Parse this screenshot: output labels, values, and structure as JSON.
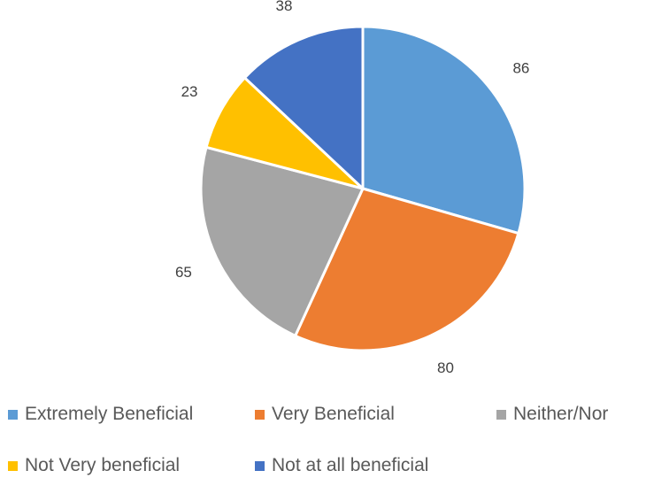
{
  "chart_data": {
    "type": "pie",
    "title": "",
    "categories": [
      "Extremely Beneficial",
      "Very Beneficial",
      "Neither/Nor",
      "Not Very beneficial",
      "Not at all beneficial"
    ],
    "values": [
      86,
      80,
      65,
      23,
      38
    ],
    "colors": [
      "#5B9BD5",
      "#ED7D31",
      "#A5A5A5",
      "#FFC000",
      "#4472C4"
    ],
    "data_labels": [
      "86",
      "80",
      "65",
      "23",
      "38"
    ],
    "start_angle": "12 o'clock",
    "direction": "clockwise",
    "legend_placement": "bottom"
  }
}
